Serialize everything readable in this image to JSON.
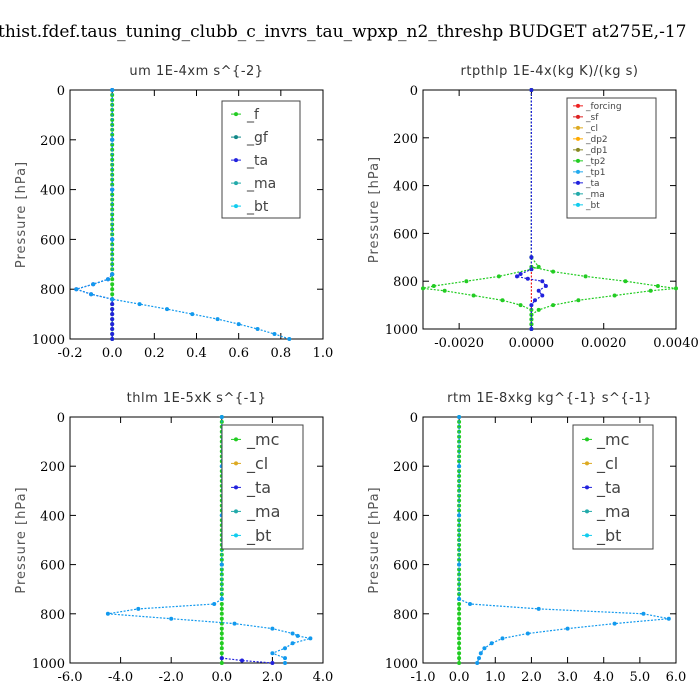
{
  "figure": {
    "suptitle": "thist.fdef.taus_tuning_clubb_c_invrs_tau_wpxp_n2_threshp  BUDGET at275E,-17"
  },
  "chart_data": [
    {
      "type": "line",
      "title": "um   1E-4xm s^{-2}",
      "ylabel": "Pressure [hPa]",
      "xlim": [
        -0.2,
        1.0
      ],
      "ylim": [
        1000,
        0
      ],
      "xticks": [
        "-0.2",
        "0.0",
        "0.2",
        "0.4",
        "0.6",
        "0.8",
        "1.0"
      ],
      "yticks": [
        "0",
        "200",
        "400",
        "600",
        "800",
        "1000"
      ],
      "legend": {
        "position": "top-right",
        "entries": [
          "_f",
          "_gf",
          "_ta",
          "_ma",
          "_bt"
        ]
      },
      "series": [
        {
          "name": "_f",
          "color": "#22cc22",
          "y": [
            0,
            20,
            40,
            60,
            80,
            100,
            120,
            140,
            160,
            180,
            200,
            220,
            240,
            260,
            280,
            300,
            320,
            340,
            360,
            380,
            400,
            420,
            440,
            460,
            480,
            500,
            520,
            540,
            560,
            580,
            600,
            620,
            640,
            660,
            680,
            700,
            720,
            740,
            760,
            780,
            800,
            820,
            840,
            860,
            880,
            900,
            920,
            940,
            960,
            980,
            1000
          ],
          "x": [
            0.0,
            0.0,
            0.0,
            0.0,
            0.0,
            0.0,
            0.0,
            0.0,
            0.0,
            0.0,
            0.0,
            0.0,
            0.0,
            0.0,
            0.0,
            0.0,
            0.0,
            0.0,
            0.0,
            0.0,
            0.0,
            0.0,
            0.0,
            0.0,
            0.0,
            0.0,
            0.0,
            0.0,
            0.0,
            0.0,
            0.0,
            0.0,
            0.0,
            0.0,
            0.0,
            0.0,
            0.0,
            0.0,
            0.0,
            0.0,
            0.0,
            0.0,
            0.0,
            0.0,
            0.0,
            0.0,
            0.0,
            0.0,
            0.0,
            0.0,
            0.0
          ]
        },
        {
          "name": "_ta",
          "color": "#2222dd",
          "y": [
            0,
            200,
            400,
            600,
            740,
            760,
            780,
            800,
            820,
            840,
            860,
            880,
            900,
            920,
            940,
            960,
            980,
            1000
          ],
          "x": [
            0.0,
            0.0,
            0.0,
            0.0,
            0.0,
            -0.02,
            -0.09,
            -0.17,
            -0.1,
            0.0,
            0.0,
            0.0,
            0.0,
            0.0,
            0.0,
            0.0,
            0.0,
            0.0
          ]
        },
        {
          "name": "_bt",
          "color": "#1199ee",
          "y": [
            0,
            200,
            400,
            600,
            740,
            760,
            780,
            800,
            820,
            840,
            860,
            880,
            900,
            920,
            940,
            960,
            980,
            1000
          ],
          "x": [
            0.0,
            0.0,
            0.0,
            0.0,
            0.0,
            -0.02,
            -0.09,
            -0.17,
            -0.1,
            0.0,
            0.13,
            0.26,
            0.38,
            0.5,
            0.6,
            0.69,
            0.77,
            0.84
          ]
        }
      ]
    },
    {
      "type": "line",
      "title": "rtpthlp   1E-4x(kg K)/(kg s)",
      "ylabel": "Pressure [hPa]",
      "xlim": [
        -0.003,
        0.004
      ],
      "ylim": [
        1000,
        0
      ],
      "xticks": [
        "-0.0020",
        "0.0000",
        "0.0020",
        "0.0040"
      ],
      "yticks": [
        "0",
        "200",
        "400",
        "600",
        "800",
        "1000"
      ],
      "legend": {
        "position": "top-right",
        "entries": [
          "_forcing",
          "_sf",
          "_cl",
          "_dp2",
          "_dp1",
          "_tp2",
          "_tp1",
          "_ta",
          "_ma",
          "_bt"
        ]
      },
      "series": [
        {
          "name": "_forcing",
          "color": "#ee2222",
          "y": [
            0,
            1000
          ],
          "x": [
            0.0,
            0.0
          ]
        },
        {
          "name": "_tp2",
          "color": "#22cc22",
          "y": [
            0,
            700,
            740,
            750,
            780,
            800,
            820,
            830,
            840,
            860,
            880,
            900,
            920,
            940,
            960,
            980,
            1000
          ],
          "x": [
            0.0,
            0.0,
            0.0002,
            0.0,
            -0.0009,
            -0.0018,
            -0.0027,
            -0.003,
            -0.0024,
            -0.0016,
            -0.0008,
            -0.0003,
            0.0,
            0.0,
            0.0,
            0.0,
            0.0
          ]
        },
        {
          "name": "_tp1",
          "color": "#22cc22",
          "y": [
            0,
            700,
            740,
            760,
            780,
            800,
            820,
            830,
            840,
            860,
            880,
            900,
            920,
            940,
            960,
            980,
            1000
          ],
          "x": [
            0.0,
            0.0,
            0.0,
            0.0006,
            0.0015,
            0.0026,
            0.0035,
            0.004,
            0.0033,
            0.0023,
            0.0013,
            0.0006,
            0.0002,
            0.0,
            0.0,
            0.0,
            0.0
          ]
        },
        {
          "name": "_ta",
          "color": "#2222dd",
          "y": [
            0,
            700,
            750,
            770,
            780,
            790,
            800,
            820,
            840,
            860,
            880,
            900,
            1000
          ],
          "x": [
            0.0,
            0.0,
            0.0,
            -0.0003,
            -0.0004,
            -0.0001,
            0.0003,
            0.0004,
            0.0002,
            0.0003,
            0.0001,
            0.0,
            0.0
          ]
        }
      ]
    },
    {
      "type": "line",
      "title": "thlm   1E-5xK s^{-1}",
      "ylabel": "Pressure [hPa]",
      "xlim": [
        -6.0,
        4.0
      ],
      "ylim": [
        1000,
        0
      ],
      "xticks": [
        "-6.0",
        "-4.0",
        "-2.0",
        "0.0",
        "2.0",
        "4.0"
      ],
      "yticks": [
        "0",
        "200",
        "400",
        "600",
        "800",
        "1000"
      ],
      "legend": {
        "position": "top-right",
        "entries": [
          "_mc",
          "_cl",
          "_ta",
          "_ma",
          "_bt"
        ]
      },
      "series": [
        {
          "name": "_mc",
          "color": "#22cc22",
          "y": [
            0,
            20,
            40,
            60,
            80,
            100,
            120,
            140,
            160,
            180,
            200,
            220,
            240,
            260,
            280,
            300,
            320,
            340,
            360,
            380,
            400,
            420,
            440,
            460,
            480,
            500,
            520,
            540,
            560,
            580,
            600,
            620,
            640,
            660,
            680,
            700,
            720,
            740,
            760,
            780,
            800,
            820,
            840,
            860,
            880,
            900,
            920,
            940,
            960,
            980,
            1000
          ],
          "x": [
            0.0,
            0.0,
            0.0,
            0.0,
            0.0,
            0.0,
            0.0,
            0.0,
            0.0,
            0.0,
            0.0,
            0.0,
            0.0,
            0.0,
            0.0,
            0.0,
            0.0,
            0.0,
            0.0,
            0.0,
            0.0,
            0.0,
            0.0,
            0.0,
            0.0,
            0.0,
            0.0,
            0.0,
            0.0,
            0.0,
            0.0,
            0.0,
            0.0,
            0.0,
            0.0,
            0.0,
            0.0,
            0.0,
            0.0,
            0.0,
            0.0,
            0.0,
            0.0,
            0.0,
            0.0,
            0.0,
            0.0,
            0.0,
            0.0,
            0.0,
            0.0
          ]
        },
        {
          "name": "_ta",
          "color": "#2222dd",
          "y": [
            980,
            990,
            1000
          ],
          "x": [
            0.0,
            0.8,
            2.0
          ]
        },
        {
          "name": "_bt",
          "color": "#1199ee",
          "y": [
            0,
            200,
            400,
            600,
            740,
            760,
            780,
            800,
            820,
            840,
            860,
            880,
            890,
            900,
            920,
            940,
            960,
            980,
            1000
          ],
          "x": [
            0.0,
            0.0,
            0.0,
            0.0,
            0.0,
            -0.3,
            -3.3,
            -4.5,
            -2.0,
            0.5,
            2.0,
            2.8,
            3.0,
            3.5,
            2.8,
            2.5,
            2.0,
            2.5,
            2.5
          ]
        }
      ]
    },
    {
      "type": "line",
      "title": "rtm   1E-8xkg kg^{-1} s^{-1}",
      "ylabel": "Pressure [hPa]",
      "xlim": [
        -1.0,
        6.0
      ],
      "ylim": [
        1000,
        0
      ],
      "xticks": [
        "-1.0",
        "0.0",
        "1.0",
        "2.0",
        "3.0",
        "4.0",
        "5.0",
        "6.0"
      ],
      "yticks": [
        "0",
        "200",
        "400",
        "600",
        "800",
        "1000"
      ],
      "legend": {
        "position": "top-right",
        "entries": [
          "_mc",
          "_cl",
          "_ta",
          "_ma",
          "_bt"
        ]
      },
      "series": [
        {
          "name": "_mc",
          "color": "#22cc22",
          "y": [
            0,
            20,
            40,
            60,
            80,
            100,
            120,
            140,
            160,
            180,
            200,
            220,
            240,
            260,
            280,
            300,
            320,
            340,
            360,
            380,
            400,
            420,
            440,
            460,
            480,
            500,
            520,
            540,
            560,
            580,
            600,
            620,
            640,
            660,
            680,
            700,
            720,
            740,
            760,
            780,
            800,
            820,
            840,
            860,
            880,
            900,
            920,
            940,
            960,
            980,
            1000
          ],
          "x": [
            0.0,
            0.0,
            0.0,
            0.0,
            0.0,
            0.0,
            0.0,
            0.0,
            0.0,
            0.0,
            0.0,
            0.0,
            0.0,
            0.0,
            0.0,
            0.0,
            0.0,
            0.0,
            0.0,
            0.0,
            0.0,
            0.0,
            0.0,
            0.0,
            0.0,
            0.0,
            0.0,
            0.0,
            0.0,
            0.0,
            0.0,
            0.0,
            0.0,
            0.0,
            0.0,
            0.0,
            0.0,
            0.0,
            0.0,
            0.0,
            0.0,
            0.0,
            0.0,
            0.0,
            0.0,
            0.0,
            0.0,
            0.0,
            0.0,
            0.0,
            0.0
          ]
        },
        {
          "name": "_bt",
          "color": "#1199ee",
          "y": [
            0,
            200,
            400,
            600,
            740,
            760,
            780,
            800,
            820,
            840,
            860,
            880,
            900,
            920,
            940,
            960,
            980,
            1000
          ],
          "x": [
            0.0,
            0.0,
            0.0,
            0.0,
            0.0,
            0.3,
            2.2,
            5.1,
            5.8,
            4.3,
            3.0,
            1.9,
            1.2,
            0.9,
            0.7,
            0.6,
            0.55,
            0.5
          ]
        }
      ]
    }
  ]
}
